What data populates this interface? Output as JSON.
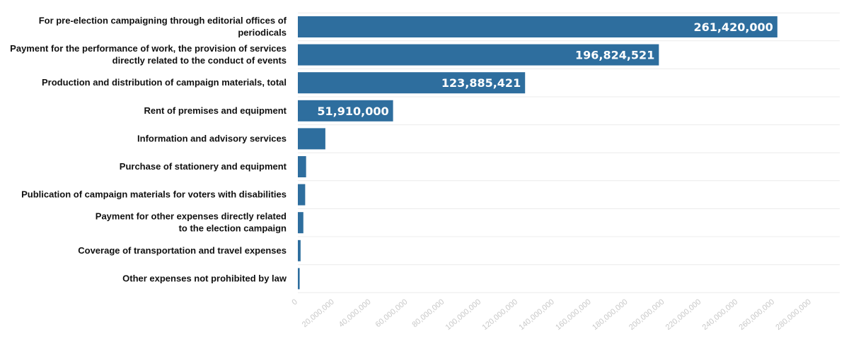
{
  "chart_data": {
    "type": "bar",
    "orientation": "horizontal",
    "title": "",
    "xlabel": "",
    "ylabel": "",
    "xlim": [
      0,
      280000000
    ],
    "grid": true,
    "legend": "none",
    "bar_color": "#2e6e9e",
    "categories": [
      [
        "For pre-election campaigning through editorial offices of",
        "periodicals "
      ],
      [
        "Payment for the performance of work, the provision of services",
        "directly related to the conduct of events"
      ],
      [
        "Production and distribution of campaign materials, total"
      ],
      [
        "Rent of premises and equipment"
      ],
      [
        "Information and advisory services"
      ],
      [
        "Purchase of stationery and equipment"
      ],
      [
        "Publication of campaign materials for voters with disabilities"
      ],
      [
        "Payment for other expenses directly related ",
        "to the election campaign"
      ],
      [
        "Coverage of transportation and travel expenses"
      ],
      [
        "Other expenses not prohibited by law"
      ]
    ],
    "values": [
      261420000,
      196824521,
      123885421,
      51910000,
      15000000,
      4500000,
      4000000,
      3000000,
      1500000,
      1000000
    ],
    "value_labels": [
      "261,420,000",
      "196,824,521",
      "123,885,421",
      "51,910,000",
      "",
      "",
      "",
      "",
      "",
      ""
    ],
    "x_ticks": [
      0,
      20000000,
      40000000,
      60000000,
      80000000,
      100000000,
      120000000,
      140000000,
      160000000,
      180000000,
      200000000,
      220000000,
      240000000,
      260000000,
      280000000
    ],
    "x_tick_labels": [
      "0",
      "20,000,000",
      "40,000,000",
      "60,000,000",
      "80,000,000",
      "100,000,000",
      "120,000,000",
      "140,000,000",
      "160,000,000",
      "180,000,000",
      "200,000,000",
      "220,000,000",
      "240,000,000",
      "260,000,000",
      "280,000,000"
    ]
  }
}
